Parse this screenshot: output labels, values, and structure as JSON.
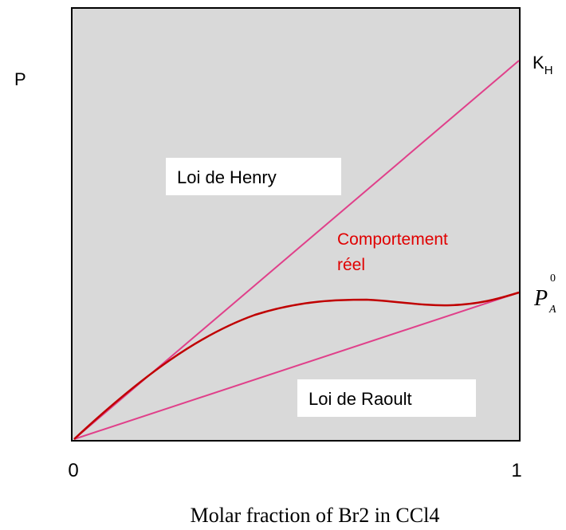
{
  "diagram": {
    "y_axis_label": "P",
    "x_axis_label": "Molar fraction of Br2 in CCl4",
    "x_ticks": [
      "0",
      "1"
    ],
    "end_labels": {
      "henry": {
        "base": "K",
        "sub": "H"
      },
      "raoult": {
        "base": "P",
        "sup": "0",
        "sub": "A"
      }
    },
    "regions": {
      "henry": "Loi de Henry",
      "raoult": "Loi de Raoult",
      "real": [
        "Comportement",
        "réel"
      ]
    }
  }
}
